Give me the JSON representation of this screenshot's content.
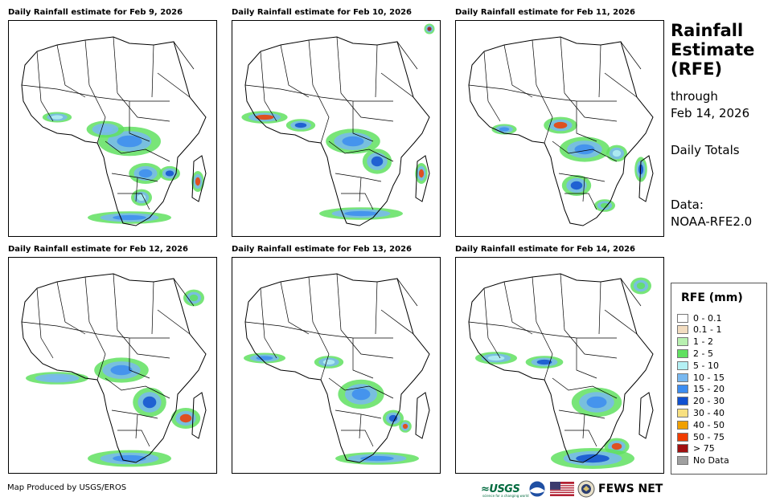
{
  "panels": [
    {
      "title": "Daily Rainfall estimate for Feb 9, 2026"
    },
    {
      "title": "Daily Rainfall estimate for Feb 10, 2026"
    },
    {
      "title": "Daily Rainfall estimate for Feb 11, 2026"
    },
    {
      "title": "Daily Rainfall estimate for Feb 12, 2026"
    },
    {
      "title": "Daily Rainfall estimate for Feb 13, 2026"
    },
    {
      "title": "Daily Rainfall estimate for Feb 14, 2026"
    }
  ],
  "sidebar": {
    "title_line1": "Rainfall",
    "title_line2": "Estimate",
    "title_line3": "(RFE)",
    "through": "through",
    "date": "Feb 14, 2026",
    "totals": "Daily Totals",
    "data_label": "Data:",
    "data_source": "NOAA-RFE2.0"
  },
  "legend": {
    "title": "RFE (mm)",
    "items": [
      {
        "label": "0 - 0.1",
        "color": "#ffffff"
      },
      {
        "label": "0.1 - 1",
        "color": "#f2dcc0"
      },
      {
        "label": "1 - 2",
        "color": "#b8f0b0"
      },
      {
        "label": "2 - 5",
        "color": "#60e060"
      },
      {
        "label": "5 - 10",
        "color": "#b4f0f4"
      },
      {
        "label": "10 - 15",
        "color": "#78b8f0"
      },
      {
        "label": "15 - 20",
        "color": "#3c8cf0"
      },
      {
        "label": "20 - 30",
        "color": "#1050d0"
      },
      {
        "label": "30 - 40",
        "color": "#f8e080"
      },
      {
        "label": "40 - 50",
        "color": "#f0a000"
      },
      {
        "label": "50 - 75",
        "color": "#f03c00"
      },
      {
        "label": "> 75",
        "color": "#a01010"
      },
      {
        "label": "No Data",
        "color": "#a0a0a0"
      }
    ]
  },
  "footer": {
    "credit": "Map Produced by USGS/EROS",
    "usgs": "≈USGS",
    "usgs_tagline": "science for a changing world",
    "fews": "FEWS NET"
  }
}
